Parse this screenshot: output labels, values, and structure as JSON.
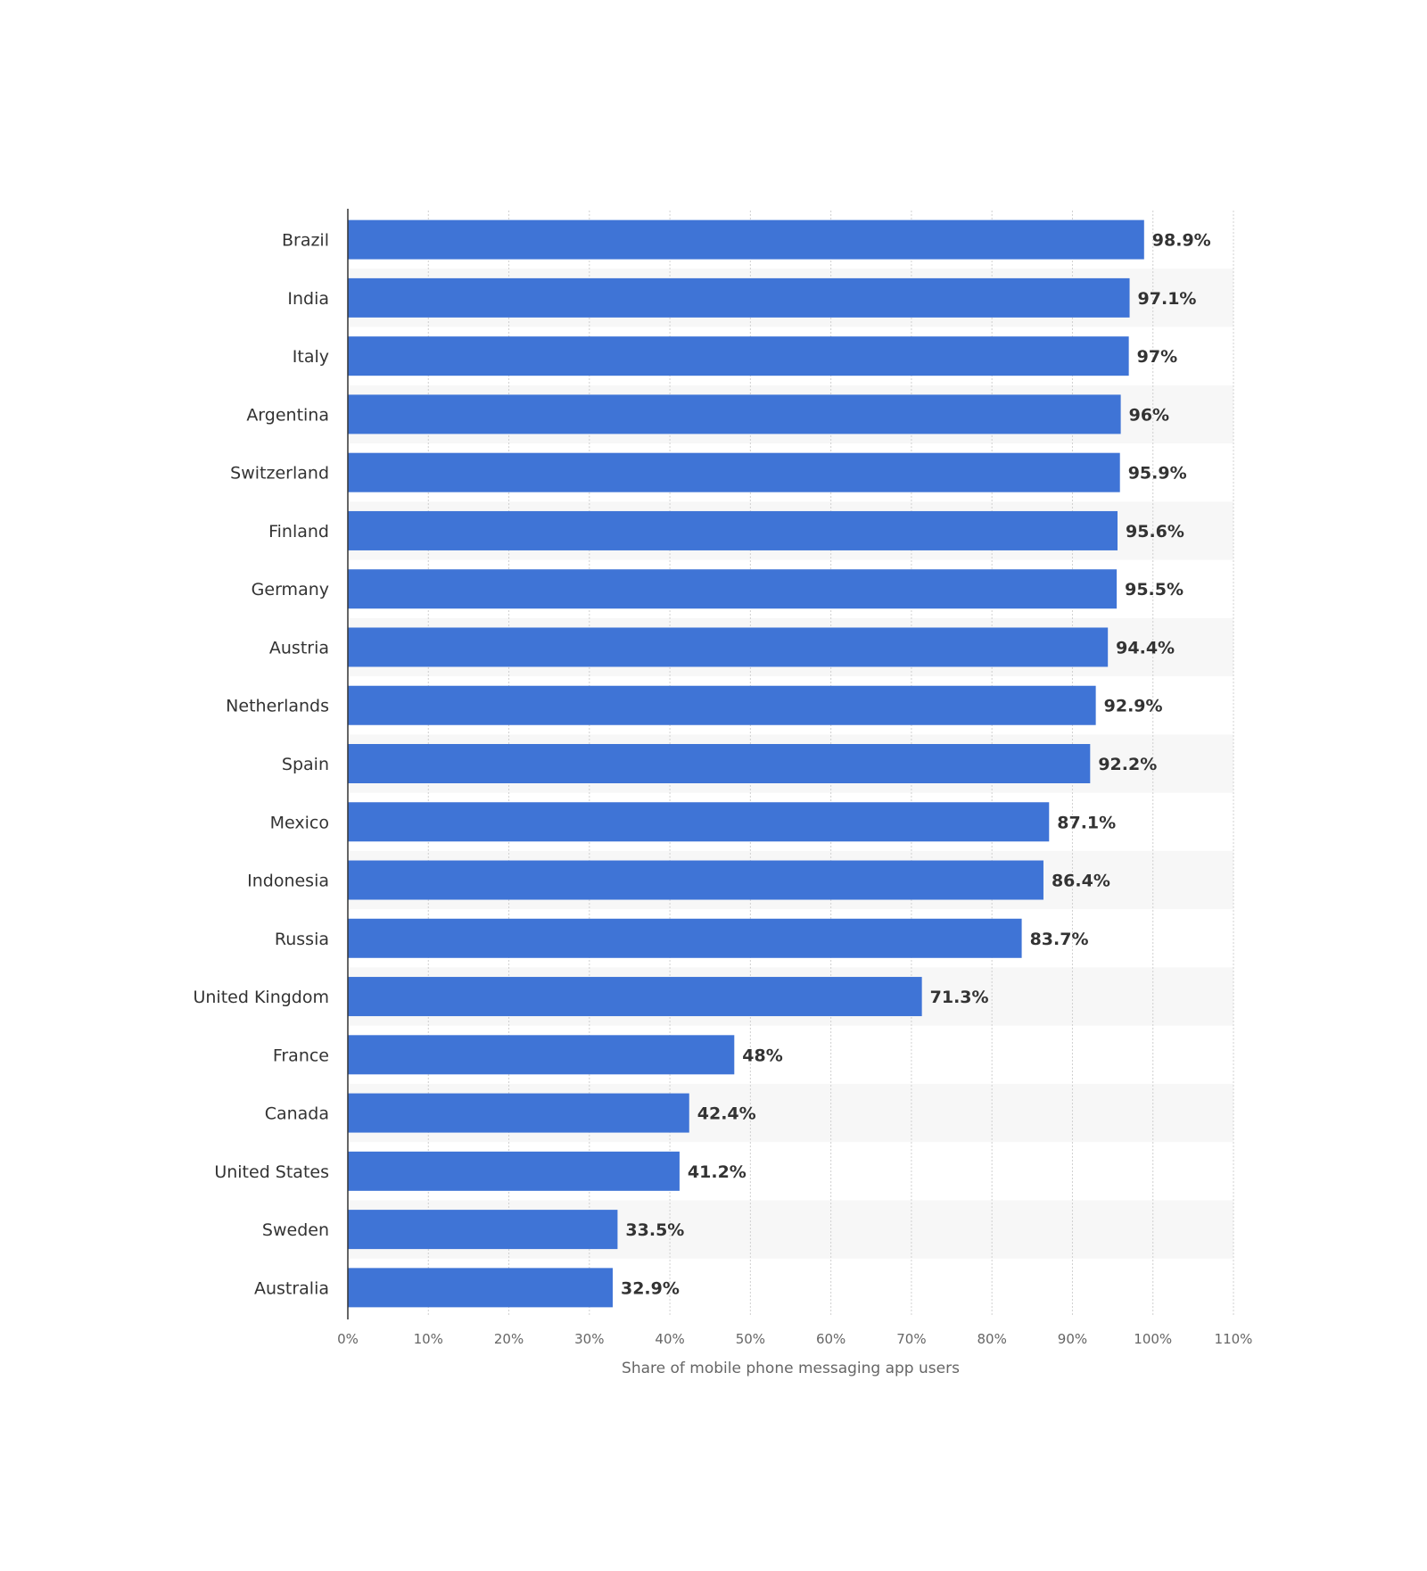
{
  "chart_data": {
    "type": "bar",
    "orientation": "horizontal",
    "categories": [
      "Brazil",
      "India",
      "Italy",
      "Argentina",
      "Switzerland",
      "Finland",
      "Germany",
      "Austria",
      "Netherlands",
      "Spain",
      "Mexico",
      "Indonesia",
      "Russia",
      "United Kingdom",
      "France",
      "Canada",
      "United States",
      "Sweden",
      "Australia"
    ],
    "values": [
      98.9,
      97.1,
      97,
      96,
      95.9,
      95.6,
      95.5,
      94.4,
      92.9,
      92.2,
      87.1,
      86.4,
      83.7,
      71.3,
      48,
      42.4,
      41.2,
      33.5,
      32.9
    ],
    "value_labels": [
      "98.9%",
      "97.1%",
      "97%",
      "96%",
      "95.9%",
      "95.6%",
      "95.5%",
      "94.4%",
      "92.9%",
      "92.2%",
      "87.1%",
      "86.4%",
      "83.7%",
      "71.3%",
      "48%",
      "42.4%",
      "41.2%",
      "33.5%",
      "32.9%"
    ],
    "x_ticks": [
      "0%",
      "10%",
      "20%",
      "30%",
      "40%",
      "50%",
      "60%",
      "70%",
      "80%",
      "90%",
      "100%",
      "110%"
    ],
    "xlabel": "Share of mobile phone messaging app users",
    "ylabel": "",
    "xlim": [
      0,
      110
    ],
    "grid": true,
    "bar_color": "#3f74d6",
    "alt_row_color": "#f7f7f7",
    "gridline_color": "#d0d0d0"
  }
}
